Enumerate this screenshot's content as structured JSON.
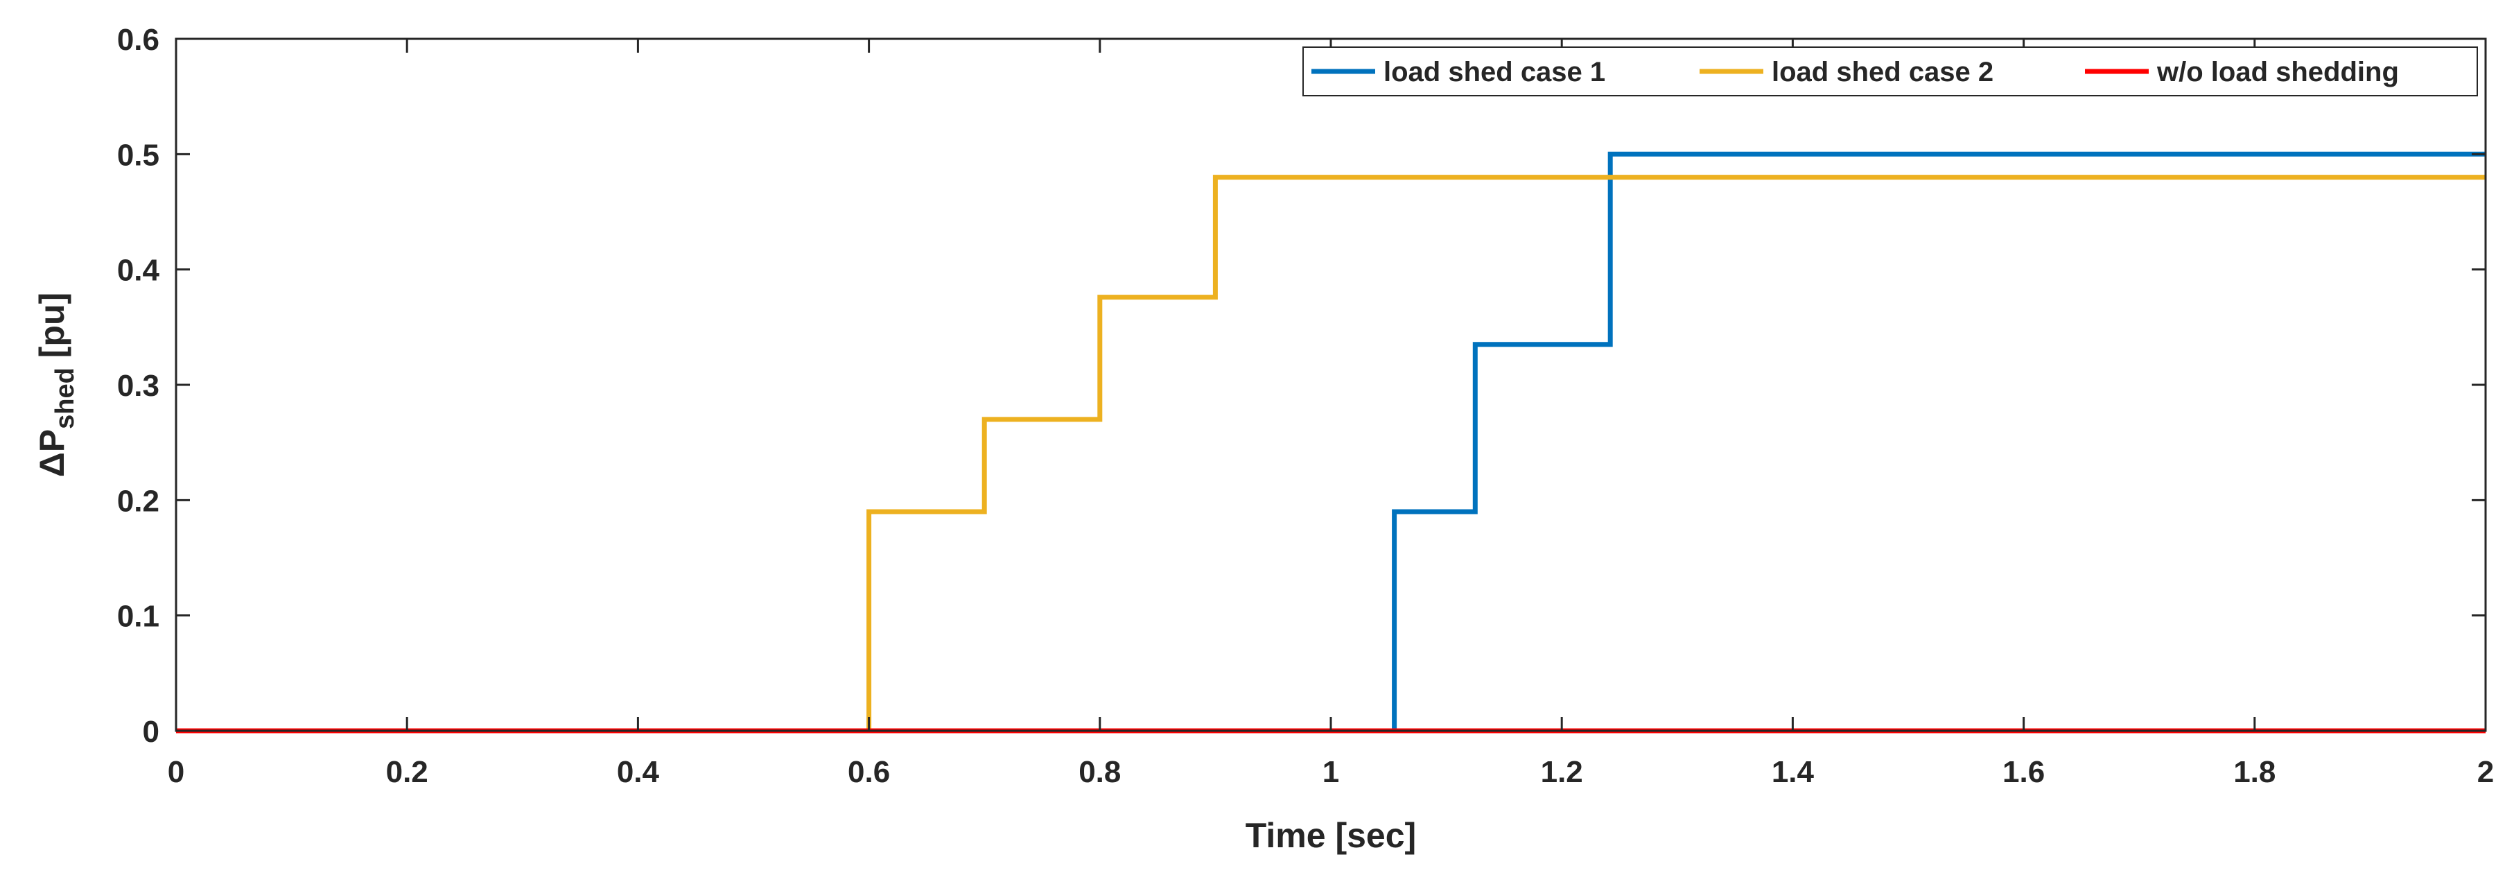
{
  "chart_data": {
    "type": "line",
    "title": "",
    "xlabel": "Time [sec]",
    "ylabel": {
      "prefix": "ΔP",
      "subscript": "shed",
      "suffix": " [pu]"
    },
    "xlim": [
      0,
      2
    ],
    "ylim": [
      0,
      0.6
    ],
    "xticks": [
      0,
      0.2,
      0.4,
      0.6,
      0.8,
      1,
      1.2,
      1.4,
      1.6,
      1.8,
      2
    ],
    "xtick_labels": [
      "0",
      "0.2",
      "0.4",
      "0.6",
      "0.8",
      "1",
      "1.2",
      "1.4",
      "1.6",
      "1.8",
      "2"
    ],
    "yticks": [
      0,
      0.1,
      0.2,
      0.3,
      0.4,
      0.5,
      0.6
    ],
    "ytick_labels": [
      "0",
      "0.1",
      "0.2",
      "0.3",
      "0.4",
      "0.5",
      "0.6"
    ],
    "grid": false,
    "legend_position": "top-right",
    "series": [
      {
        "name": "load shed case 1",
        "color": "#0072BD",
        "style": "step",
        "x": [
          0,
          1.055,
          1.055,
          1.125,
          1.125,
          1.242,
          1.242,
          2
        ],
        "y": [
          0,
          0,
          0.19,
          0.19,
          0.335,
          0.335,
          0.5,
          0.5
        ]
      },
      {
        "name": "load shed case 2",
        "color": "#EDB120",
        "style": "step",
        "x": [
          0,
          0.6,
          0.6,
          0.7,
          0.7,
          0.8,
          0.8,
          0.9,
          0.9,
          2
        ],
        "y": [
          0,
          0,
          0.19,
          0.19,
          0.27,
          0.27,
          0.376,
          0.376,
          0.48,
          0.48
        ]
      },
      {
        "name": "w/o load shedding",
        "color": "#FF0000",
        "style": "line",
        "x": [
          0,
          2
        ],
        "y": [
          0,
          0
        ]
      }
    ]
  }
}
